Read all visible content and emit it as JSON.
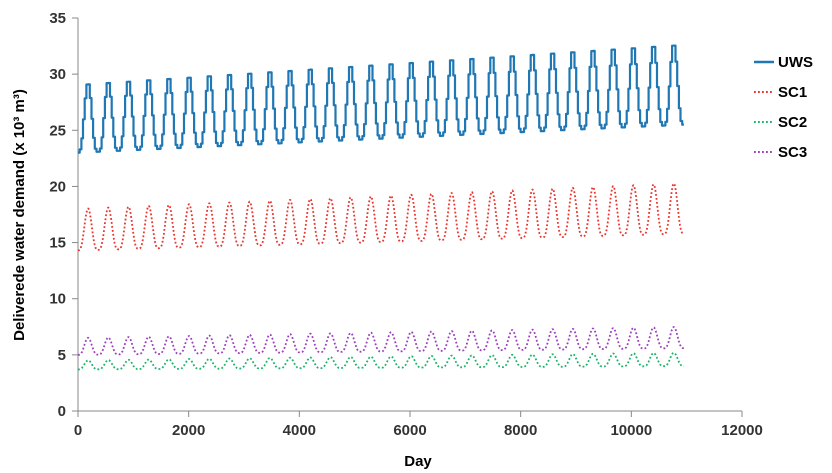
{
  "chart_data": {
    "type": "line",
    "xlabel": "Day",
    "ylabel": "Deliverede water demand (x 10³ m³)",
    "xlim": [
      0,
      12000
    ],
    "ylim": [
      0,
      35
    ],
    "xticks": [
      0,
      2000,
      4000,
      6000,
      8000,
      10000,
      12000
    ],
    "yticks": [
      0,
      5,
      10,
      15,
      20,
      25,
      30,
      35
    ],
    "grid": false,
    "legend_position": "right",
    "x_end": 10950,
    "period_days": 365,
    "series": [
      {
        "name": "UWS",
        "color": "#1f77b4",
        "style": "solid",
        "base_start": 23.0,
        "base_end": 25.5,
        "peak_start": 29.2,
        "peak_end": 32.8,
        "stepped": true
      },
      {
        "name": "SC1",
        "color": "#e8352e",
        "style": "dotted",
        "base_start": 14.3,
        "base_end": 15.8,
        "peak_start": 18.0,
        "peak_end": 20.3,
        "stepped": false
      },
      {
        "name": "SC2",
        "color": "#1bb36a",
        "style": "dotted",
        "base_start": 3.7,
        "base_end": 4.0,
        "peak_start": 4.5,
        "peak_end": 5.2,
        "stepped": false
      },
      {
        "name": "SC3",
        "color": "#9b3fbf",
        "style": "dotted",
        "base_start": 5.0,
        "base_end": 5.6,
        "peak_start": 6.5,
        "peak_end": 7.5,
        "stepped": false
      }
    ]
  }
}
